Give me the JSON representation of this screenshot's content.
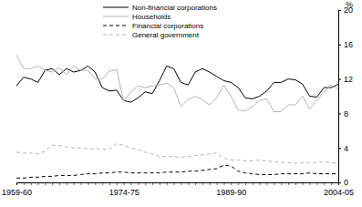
{
  "chart_data": {
    "type": "line",
    "y_label": "%",
    "categories": [
      "1959-60",
      null,
      null,
      null,
      null,
      null,
      null,
      null,
      null,
      null,
      null,
      null,
      null,
      null,
      null,
      "1974-75",
      null,
      null,
      null,
      null,
      null,
      null,
      null,
      null,
      null,
      null,
      null,
      null,
      null,
      null,
      "1989-90",
      null,
      null,
      null,
      null,
      null,
      null,
      null,
      null,
      null,
      null,
      null,
      null,
      null,
      null,
      "2004-05"
    ],
    "ylim": [
      0,
      20
    ],
    "yticks": [
      0,
      4,
      8,
      12,
      16,
      20
    ],
    "grid": false,
    "legend": "top-left",
    "series": [
      {
        "name": "Non-financial corporations",
        "color": "#000000",
        "line_style": "solid",
        "values": [
          11.2,
          12.2,
          12.0,
          11.6,
          13.0,
          13.2,
          12.5,
          13.2,
          12.8,
          13.0,
          13.5,
          12.8,
          11.0,
          10.6,
          10.7,
          9.5,
          9.3,
          9.8,
          10.5,
          10.3,
          11.8,
          13.5,
          13.2,
          11.6,
          11.3,
          12.8,
          13.2,
          12.8,
          12.3,
          11.8,
          11.6,
          11.0,
          9.8,
          9.7,
          10.0,
          10.6,
          11.6,
          11.6,
          12.0,
          11.9,
          11.4,
          10.0,
          9.9,
          11.0,
          11.0,
          11.4
        ]
      },
      {
        "name": "Households",
        "color": "#b4b4b4",
        "line_style": "solid",
        "values": [
          14.8,
          13.2,
          13.2,
          13.5,
          13.0,
          12.8,
          13.3,
          12.5,
          13.5,
          13.0,
          13.0,
          12.0,
          12.0,
          12.9,
          13.1,
          9.4,
          10.5,
          11.2,
          11.0,
          11.2,
          11.3,
          11.5,
          11.0,
          8.8,
          9.6,
          10.0,
          9.6,
          9.0,
          9.8,
          11.3,
          10.0,
          8.4,
          8.3,
          8.8,
          9.5,
          9.7,
          8.2,
          8.2,
          9.0,
          9.0,
          10.0,
          8.5,
          9.5,
          10.5,
          11.3,
          10.8
        ]
      },
      {
        "name": "Financial corporations",
        "color": "#000000",
        "line_style": "dashed",
        "values": [
          0.5,
          0.5,
          0.6,
          0.6,
          0.7,
          0.7,
          0.8,
          0.8,
          0.8,
          0.9,
          1.0,
          1.0,
          1.1,
          1.1,
          1.2,
          1.2,
          1.1,
          1.1,
          1.1,
          1.1,
          1.1,
          1.2,
          1.2,
          1.2,
          1.3,
          1.3,
          1.4,
          1.5,
          1.6,
          2.0,
          1.9,
          1.3,
          1.1,
          1.0,
          0.9,
          0.9,
          0.9,
          1.0,
          1.0,
          1.0,
          1.0,
          1.1,
          1.0,
          1.0,
          1.0,
          1.0
        ]
      },
      {
        "name": "General government",
        "color": "#b4b4b4",
        "line_style": "dashed",
        "values": [
          3.5,
          3.4,
          3.4,
          3.3,
          3.6,
          4.3,
          4.3,
          4.1,
          4.0,
          4.0,
          3.9,
          3.9,
          3.9,
          3.8,
          4.5,
          4.3,
          4.0,
          3.8,
          3.5,
          3.3,
          3.0,
          3.0,
          3.0,
          2.9,
          3.0,
          3.1,
          3.2,
          3.3,
          3.4,
          2.8,
          2.6,
          2.6,
          2.5,
          2.5,
          2.6,
          2.5,
          2.4,
          2.3,
          2.3,
          2.2,
          2.3,
          2.3,
          2.3,
          2.4,
          2.3,
          2.2
        ]
      }
    ]
  }
}
